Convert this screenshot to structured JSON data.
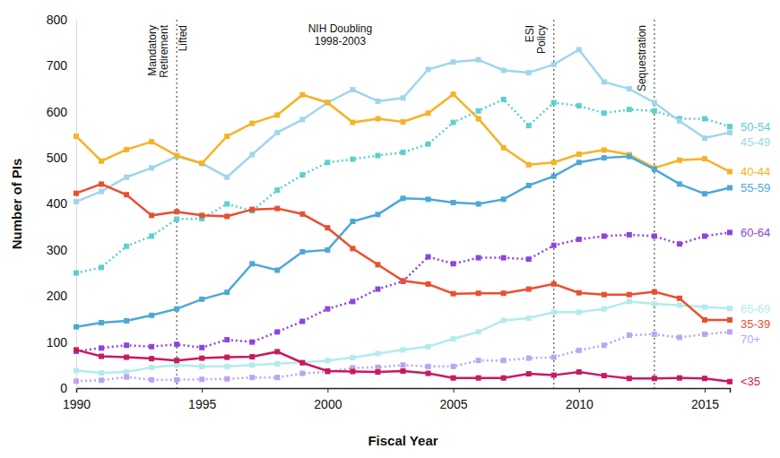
{
  "chart_data": {
    "type": "line",
    "x_label": "Fiscal Year",
    "y_label": "Number of PIs",
    "x": [
      1990,
      1991,
      1992,
      1993,
      1994,
      1995,
      1996,
      1997,
      1998,
      1999,
      2000,
      2001,
      2002,
      2003,
      2004,
      2005,
      2006,
      2007,
      2008,
      2009,
      2010,
      2011,
      2012,
      2013,
      2014,
      2015,
      2016
    ],
    "xlim": [
      1990,
      2016
    ],
    "xticks": [
      1990,
      1995,
      2000,
      2005,
      2010,
      2015
    ],
    "ylim": [
      0,
      800
    ],
    "yticks": [
      0,
      100,
      200,
      300,
      400,
      500,
      600,
      700,
      800
    ],
    "grid": false,
    "legend": "right",
    "marker": "square",
    "series": [
      {
        "name": "50-54",
        "color": "#5ccfcf",
        "line_style": "dotted",
        "values": [
          250,
          262,
          308,
          330,
          367,
          368,
          400,
          385,
          430,
          463,
          490,
          497,
          505,
          512,
          530,
          577,
          602,
          627,
          570,
          620,
          613,
          597,
          605,
          602,
          585,
          585,
          568
        ]
      },
      {
        "name": "45-49",
        "color": "#9fd6ec",
        "line_style": "solid",
        "values": [
          405,
          427,
          458,
          478,
          503,
          488,
          458,
          507,
          555,
          583,
          620,
          648,
          623,
          630,
          692,
          708,
          713,
          690,
          685,
          703,
          735,
          665,
          650,
          620,
          580,
          543,
          555
        ]
      },
      {
        "name": "40-44",
        "color": "#f5b325",
        "line_style": "solid",
        "values": [
          547,
          493,
          518,
          535,
          505,
          488,
          547,
          575,
          593,
          637,
          620,
          577,
          585,
          578,
          597,
          638,
          585,
          522,
          485,
          490,
          508,
          517,
          507,
          478,
          495,
          498,
          470
        ]
      },
      {
        "name": "55-59",
        "color": "#4da8d6",
        "line_style": "solid",
        "values": [
          133,
          142,
          146,
          158,
          172,
          193,
          208,
          270,
          256,
          296,
          300,
          362,
          377,
          412,
          410,
          403,
          400,
          410,
          440,
          460,
          490,
          500,
          503,
          475,
          443,
          422,
          435
        ]
      },
      {
        "name": "60-64",
        "color": "#8c45dc",
        "line_style": "dotted",
        "values": [
          80,
          87,
          93,
          90,
          95,
          88,
          105,
          100,
          122,
          145,
          172,
          188,
          215,
          232,
          285,
          270,
          283,
          283,
          280,
          310,
          323,
          330,
          333,
          330,
          313,
          330,
          338
        ]
      },
      {
        "name": "65-69",
        "color": "#b2ecec",
        "line_style": "solid",
        "values": [
          38,
          33,
          35,
          45,
          50,
          47,
          47,
          50,
          53,
          56,
          60,
          66,
          75,
          83,
          90,
          107,
          122,
          147,
          152,
          165,
          165,
          172,
          188,
          183,
          180,
          176,
          173
        ]
      },
      {
        "name": "35-39",
        "color": "#e8502f",
        "line_style": "solid",
        "values": [
          423,
          443,
          420,
          375,
          383,
          375,
          373,
          388,
          390,
          378,
          348,
          303,
          268,
          233,
          226,
          205,
          206,
          206,
          215,
          226,
          207,
          203,
          203,
          209,
          195,
          148,
          148
        ]
      },
      {
        "name": "70+",
        "color": "#b8a6f2",
        "line_style": "dotted",
        "values": [
          15,
          17,
          24,
          18,
          18,
          19,
          20,
          23,
          23,
          32,
          35,
          44,
          45,
          50,
          47,
          47,
          60,
          60,
          65,
          67,
          82,
          93,
          115,
          117,
          110,
          117,
          122
        ]
      },
      {
        "name": "<35",
        "color": "#c81a5f",
        "line_style": "solid",
        "values": [
          83,
          69,
          67,
          64,
          60,
          65,
          67,
          68,
          79,
          55,
          37,
          36,
          35,
          37,
          32,
          22,
          22,
          22,
          31,
          28,
          35,
          27,
          21,
          21,
          22,
          21,
          14
        ]
      }
    ],
    "annotations": [
      {
        "x": 1994,
        "label": "Mandatory Retirement"
      },
      {
        "x": 1994,
        "label": "Lifted"
      },
      {
        "x": 2009,
        "label": "ESI Policy"
      },
      {
        "x": 2013,
        "label": "Sequestration"
      }
    ],
    "period": {
      "label": "NIH Doubling",
      "range_label": "1998-2003",
      "start": 1998,
      "end": 2003
    }
  }
}
